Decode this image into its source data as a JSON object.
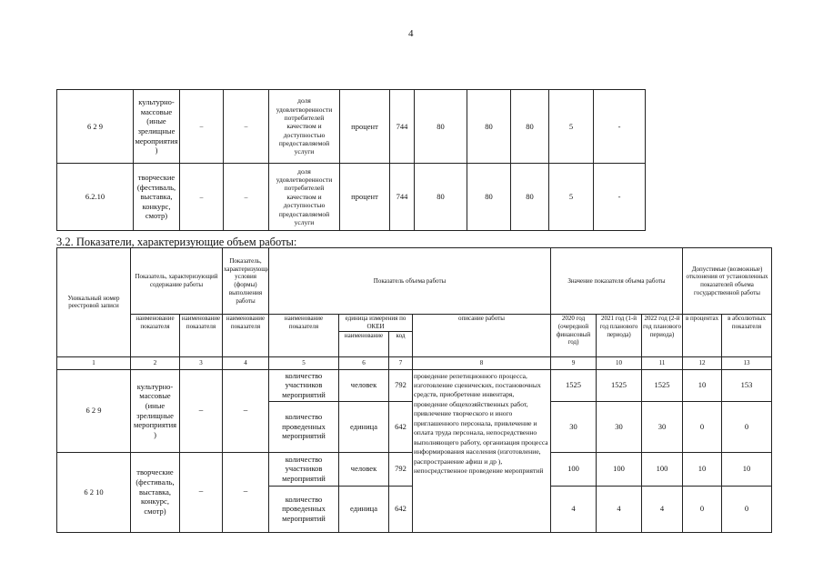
{
  "page_number": "4",
  "quality_table": {
    "rows": [
      {
        "code": "6 2 9",
        "name": "культурно-массовые (иные зрелищные мероприятия )",
        "c3": "–",
        "c4": "–",
        "indicator": "доля удовлетворенности потребителей качеством и доступностью предоставляемой услуги",
        "unit": "процент",
        "okei": "744",
        "v2020": "80",
        "v2021": "80",
        "v2022": "80",
        "dev_pct": "5",
        "dev_abs": "-"
      },
      {
        "code": "6.2.10",
        "name": "творческие (фестиваль, выставка, конкурс, смотр)",
        "c3": "–",
        "c4": "–",
        "indicator": "доля удовлетворенности потребителей качеством и доступностью предоставляемой услуги",
        "unit": "процент",
        "okei": "744",
        "v2020": "80",
        "v2021": "80",
        "v2022": "80",
        "dev_pct": "5",
        "dev_abs": "-"
      }
    ]
  },
  "section_heading": "3.2. Показатели, характеризующие объем работы:",
  "volume_table": {
    "headers": {
      "unique_number": "Уникальный номер реестровой записи",
      "content_indicator": "Показатель, характеризующий содержание работы",
      "conditions_indicator": "Показатель, характеризующий условия (формы) выполнения работы",
      "volume_indicator": "Показатель объема работы",
      "volume_value": "Значение показателя объема работы",
      "deviations": "Допустимые (возможные) отклонения от установленных показателей объема государственной работы",
      "name_ind_2": "наименование показателя",
      "name_ind_3": "наименование показателя",
      "name_ind_4": "наименование показателя",
      "name_ind_5": "наименование показателя",
      "okei_unit": "единица измерения по ОКЕИ",
      "okei_name": "наименование",
      "okei_code": "код",
      "work_description": "описание работы",
      "y2020": "2020 год (очередной финансовый год)",
      "y2021": "2021 год (1-й год планового периода)",
      "y2022": "2022 год (2-й год планового периода)",
      "in_percent": "в процентах",
      "in_absolute": "в абсолютных показателя"
    },
    "column_numbers": [
      "1",
      "2",
      "3",
      "4",
      "5",
      "6",
      "7",
      "8",
      "9",
      "10",
      "11",
      "12",
      "13"
    ],
    "description": "проведение репетиционного процесса, изготовление сценических, постановочных средств, приобретение инвентаря, проведение общехозяйственных работ, привлечение творческого и иного приглашенного персонала, привлечение и оплата труда персонала, непосредственно выполняющего работу, организация процесса информирования населения (изготовление, распространение афиш и др ), непосредственное проведение мероприятий",
    "groups": [
      {
        "code": "6 2 9",
        "name": "культурно-массовые (иные зрелищные мероприятия )",
        "c3": "–",
        "c4": "–",
        "rows": [
          {
            "indicator": "количество участников мероприятий",
            "unit": "человек",
            "okei": "792",
            "v2020": "1525",
            "v2021": "1525",
            "v2022": "1525",
            "dev_pct": "10",
            "dev_abs": "153"
          },
          {
            "indicator": "количество проведенных мероприятий",
            "unit": "единица",
            "okei": "642",
            "v2020": "30",
            "v2021": "30",
            "v2022": "30",
            "dev_pct": "0",
            "dev_abs": "0"
          }
        ]
      },
      {
        "code": "6 2 10",
        "name": "творческие (фестиваль, выставка, конкурс, смотр)",
        "c3": "–",
        "c4": "–",
        "rows": [
          {
            "indicator": "количество участников мероприятий",
            "unit": "человек",
            "okei": "792",
            "v2020": "100",
            "v2021": "100",
            "v2022": "100",
            "dev_pct": "10",
            "dev_abs": "10"
          },
          {
            "indicator": "количество проведенных мероприятий",
            "unit": "единица",
            "okei": "642",
            "v2020": "4",
            "v2021": "4",
            "v2022": "4",
            "dev_pct": "0",
            "dev_abs": "0"
          }
        ]
      }
    ]
  }
}
